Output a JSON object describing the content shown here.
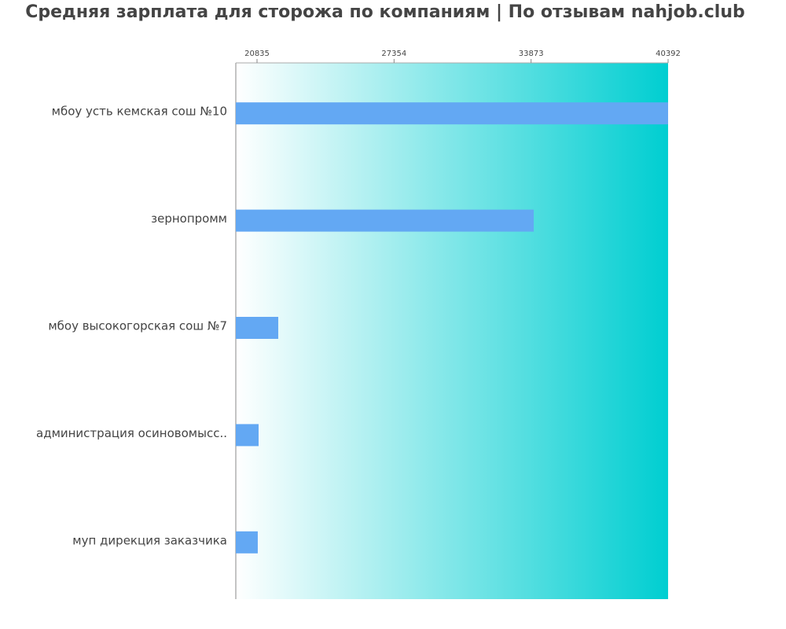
{
  "chart_data": {
    "type": "barh",
    "title": "Средняя зарплата для сторожа по компаниям  | По отзывам nahjob.club",
    "categories": [
      "мбоу усть кемская сош №10",
      "зернопромм",
      "мбоу высокогорская сош №7",
      "администрация осиновомысс..",
      "муп дирекция заказчика"
    ],
    "values": [
      40392,
      34000,
      21845,
      20910,
      20870
    ],
    "color": "#63a8f3",
    "xlim": [
      19825,
      40392
    ],
    "xticks": [
      20835,
      27354,
      33873,
      40392
    ]
  }
}
